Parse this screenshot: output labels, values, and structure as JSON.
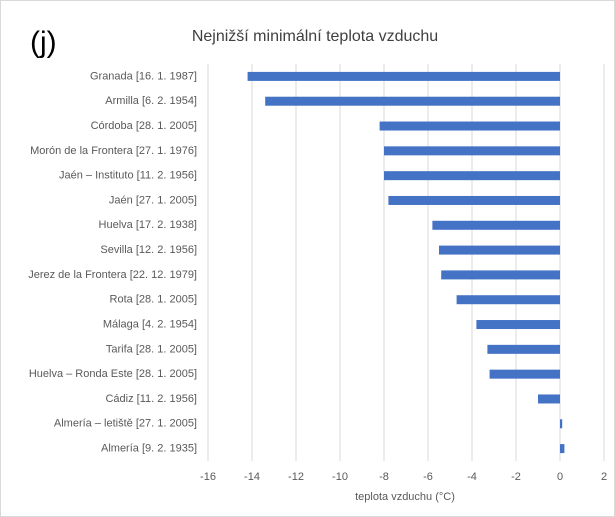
{
  "chart_data": {
    "type": "bar",
    "orientation": "horizontal",
    "panel_label": "(j)",
    "title": "Nejnižší minimální teplota vzduchu",
    "x_label": "teplota vzduchu (°C)",
    "categories": [
      "Granada [16. 1. 1987]",
      "Armilla [6. 2. 1954]",
      "Córdoba [28. 1. 2005]",
      "Morón de la Frontera [27. 1. 1976]",
      "Jaén – Instituto [11. 2. 1956]",
      "Jaén [27. 1. 2005]",
      "Huelva [17. 2. 1938]",
      "Sevilla [12. 2. 1956]",
      "Jerez de la Frontera [22. 12. 1979]",
      "Rota [28. 1. 2005]",
      "Málaga [4. 2. 1954]",
      "Tarifa [28. 1. 2005]",
      "Huelva – Ronda Este [28. 1. 2005]",
      "Cádiz [11. 2. 1956]",
      "Almería – letiště [27. 1. 2005]",
      "Almería [9. 2. 1935]"
    ],
    "values": [
      -14.2,
      -13.4,
      -8.2,
      -8.0,
      -8.0,
      -7.8,
      -5.8,
      -5.5,
      -5.4,
      -4.7,
      -3.8,
      -3.3,
      -3.2,
      -1.0,
      0.1,
      0.2
    ],
    "color": "#4472c4",
    "xlim": [
      -16,
      2
    ],
    "xticks": [
      -16,
      -14,
      -12,
      -10,
      -8,
      -6,
      -4,
      -2,
      0,
      2
    ],
    "grid": true
  }
}
